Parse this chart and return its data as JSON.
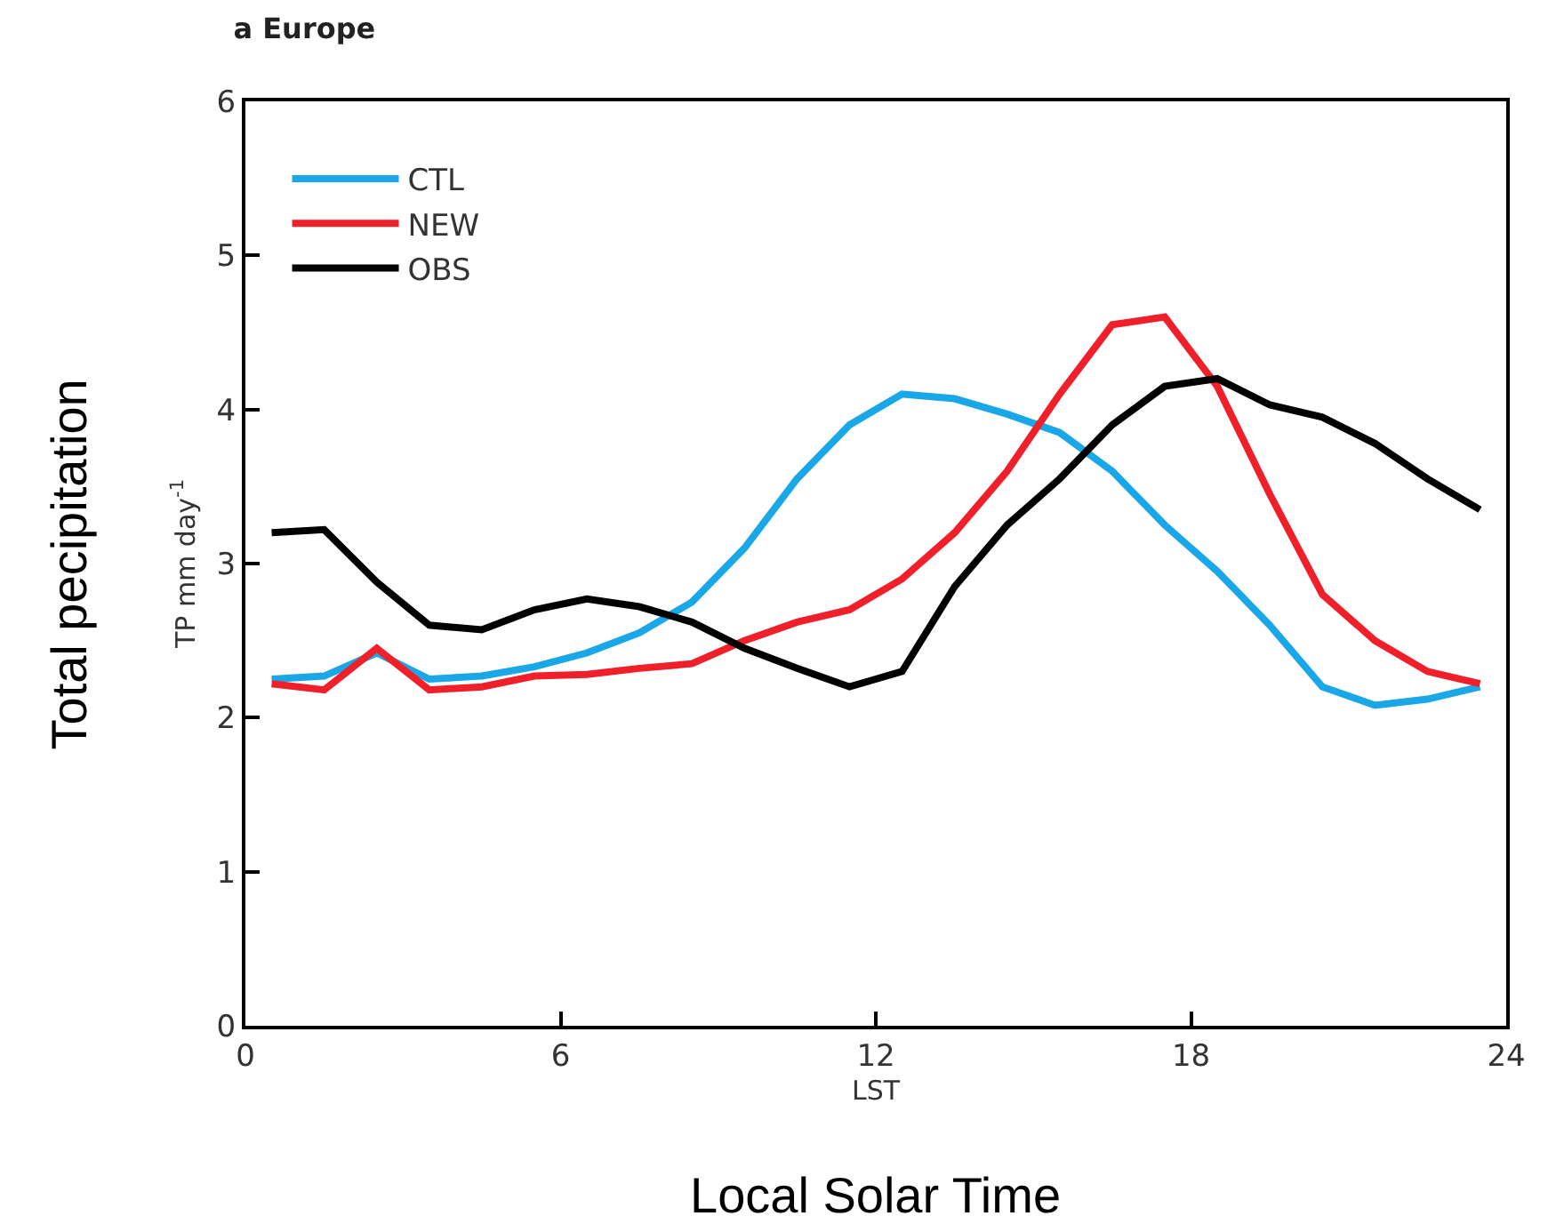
{
  "chart_data": {
    "type": "line",
    "title": "a Europe",
    "xlabel": "LST",
    "ylabel": "TP mm day$^{-1}$",
    "annotations": [
      "Total pecipitation",
      "Local Solar Time"
    ],
    "x": [
      0.5,
      1.5,
      2.5,
      3.5,
      4.5,
      5.5,
      6.5,
      7.5,
      8.5,
      9.5,
      10.5,
      11.5,
      12.5,
      13.5,
      14.5,
      15.5,
      16.5,
      17.5,
      18.5,
      19.5,
      20.5,
      21.5,
      22.5,
      23.5
    ],
    "series": [
      {
        "name": "CTL",
        "color": "#1aa7e8",
        "values": [
          2.25,
          2.27,
          2.42,
          2.25,
          2.27,
          2.33,
          2.42,
          2.55,
          2.75,
          3.1,
          3.55,
          3.9,
          4.1,
          4.07,
          3.97,
          3.85,
          3.6,
          3.25,
          2.95,
          2.6,
          2.2,
          2.08,
          2.12,
          2.2
        ]
      },
      {
        "name": "NEW",
        "color": "#f0202a",
        "values": [
          2.22,
          2.18,
          2.45,
          2.18,
          2.2,
          2.27,
          2.28,
          2.32,
          2.35,
          2.5,
          2.62,
          2.7,
          2.9,
          3.2,
          3.6,
          4.1,
          4.55,
          4.6,
          4.15,
          3.45,
          2.8,
          2.5,
          2.3,
          2.22
        ]
      },
      {
        "name": "OBS",
        "color": "#000000",
        "values": [
          3.2,
          3.22,
          2.88,
          2.6,
          2.57,
          2.7,
          2.77,
          2.72,
          2.62,
          2.45,
          2.32,
          2.2,
          2.3,
          2.85,
          3.25,
          3.55,
          3.9,
          4.15,
          4.2,
          4.03,
          3.95,
          3.78,
          3.55,
          3.35
        ]
      }
    ],
    "xlim": [
      0,
      24
    ],
    "xticks": [
      0,
      6,
      12,
      18,
      24
    ],
    "ylim": [
      0,
      6
    ],
    "yticks": [
      0,
      1,
      2,
      3,
      4,
      5,
      6
    ],
    "legend": "top left",
    "marker": "none",
    "line_style": "solid"
  }
}
